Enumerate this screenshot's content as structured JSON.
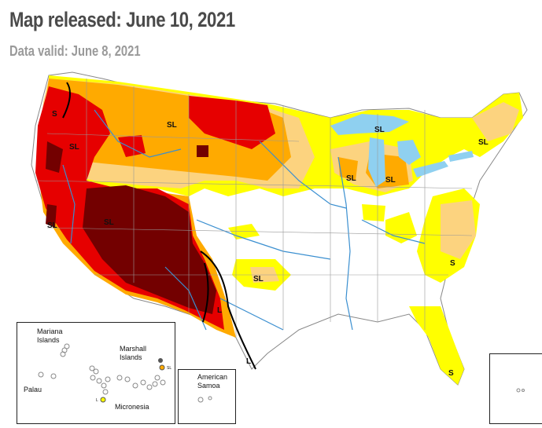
{
  "header": {
    "title": "Map released: June 10, 2021",
    "subtitle": "Data valid: June 8, 2021"
  },
  "map": {
    "colors": {
      "D0": "#ffff00",
      "D1": "#fcd37f",
      "D2": "#ffaa00",
      "D3": "#e60000",
      "D4": "#730000",
      "water": "#8fd0f0",
      "impact_line": "#000000"
    },
    "impact_labels": [
      "S",
      "SL",
      "SL",
      "SL",
      "SL",
      "SL",
      "SL",
      "SL",
      "SL",
      "SL",
      "S",
      "L",
      "L",
      "S"
    ]
  },
  "insets": {
    "pacific": {
      "mariana": "Mariana\nIslands",
      "marshall": "Marshall\nIslands",
      "palau": "Palau",
      "micronesia": "Micronesia",
      "sl_tag": "SL",
      "l_tag": "L"
    },
    "samoa": {
      "label": "American\nSamoa"
    }
  }
}
